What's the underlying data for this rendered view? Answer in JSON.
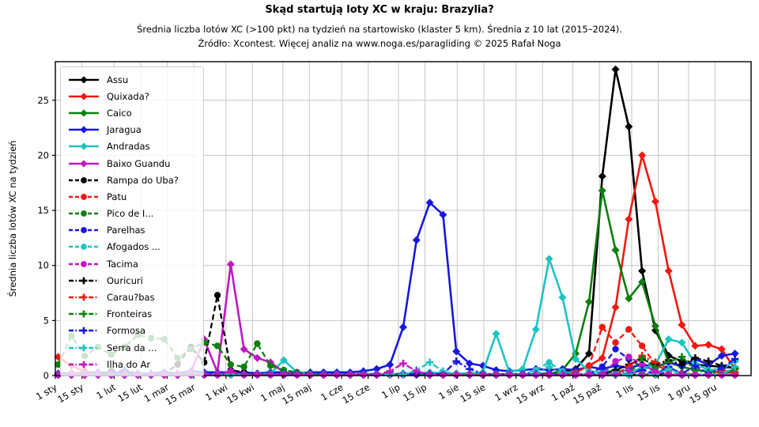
{
  "header": {
    "title": "Skąd startują loty XC w kraju: Brazylia?",
    "subtitle": "Średnia liczba lotów XC (>100 pkt) na tydzień na startowisko (klaster 5 km). Średnia z 10 lat (2015–2024).",
    "source": "Źródło: Xcontest. Więcej analiz na www.noga.es/paragliding © 2025 Rafał Noga"
  },
  "chart_data": {
    "type": "line",
    "title": "Skąd startują loty XC w kraju: Brazylia?",
    "subtitle": "Średnia liczba lotów XC (>100 pkt) na tydzień na startowisko (klaster 5 km). Średnia z 10 lat (2015–2024).",
    "source": "Źródło: Xcontest. Więcej analiz na www.noga.es/paragliding © 2025 Rafał Noga",
    "ylabel": "Średnia liczba lotów XC na tydzień",
    "ylim": [
      0,
      28.5
    ],
    "y_ticks": [
      0,
      5,
      10,
      15,
      20,
      25
    ],
    "grid": true,
    "legend_position": "upper left",
    "x_tick_labels": [
      "1 sty",
      "15 sty",
      "1 lut",
      "15 lut",
      "1 mar",
      "15 mar",
      "1 kwi",
      "15 kwi",
      "1 maj",
      "15 maj",
      "1 cze",
      "15 cze",
      "1 lip",
      "15 lip",
      "1 sie",
      "15 sie",
      "1 wrz",
      "15 wrz",
      "1 paź",
      "15 paź",
      "1 lis",
      "15 lis",
      "1 gru",
      "15 gru"
    ],
    "x_tick_days": [
      0,
      14,
      31,
      45,
      59,
      73,
      90,
      104,
      120,
      134,
      151,
      165,
      181,
      195,
      212,
      226,
      243,
      257,
      273,
      287,
      304,
      318,
      334,
      348
    ],
    "weeks": 52,
    "grid_color": "#c6c6c6",
    "series": [
      {
        "name": "Assu",
        "color": "#000000",
        "line": "solid",
        "marker": "diamond",
        "values": [
          0.1,
          0.1,
          0.1,
          0.1,
          0.1,
          0.1,
          0.1,
          0.1,
          0.1,
          0.1,
          0.1,
          0.1,
          0.1,
          0.1,
          0.1,
          0.1,
          0.1,
          0.1,
          0.1,
          0.1,
          0.1,
          0.1,
          0.1,
          0.1,
          0.1,
          0.1,
          0.1,
          0.1,
          0.1,
          0.1,
          0.1,
          0.1,
          0.1,
          0.1,
          0.1,
          0.1,
          0.1,
          0.2,
          0.3,
          0.6,
          2.0,
          18.1,
          27.8,
          22.6,
          9.5,
          4.1,
          1.8,
          1.3,
          1.0,
          0.9,
          0.8,
          0.7
        ]
      },
      {
        "name": "Quixada?",
        "color": "#ee1a10",
        "line": "solid",
        "marker": "diamond",
        "values": [
          1.7,
          0.9,
          0.4,
          0.2,
          0.1,
          0.1,
          0.1,
          0.1,
          0.1,
          0.1,
          0.1,
          0.1,
          0.1,
          0.1,
          0.1,
          0.1,
          0.1,
          0.1,
          0.1,
          0.1,
          0.1,
          0.1,
          0.1,
          0.1,
          0.1,
          0.1,
          0.1,
          0.1,
          0.1,
          0.1,
          0.1,
          0.1,
          0.1,
          0.1,
          0.1,
          0.1,
          0.1,
          0.1,
          0.2,
          0.3,
          0.9,
          1.6,
          6.2,
          14.2,
          20.0,
          15.8,
          9.5,
          4.6,
          2.7,
          2.8,
          2.4,
          0.6
        ]
      },
      {
        "name": "Caico",
        "color": "#0c7f0c",
        "line": "solid",
        "marker": "diamond",
        "values": [
          0.1,
          0.1,
          0.1,
          0.1,
          0.1,
          0.1,
          0.1,
          0.1,
          0.1,
          0.1,
          0.1,
          0.1,
          0.1,
          0.1,
          0.1,
          0.1,
          0.1,
          0.1,
          0.1,
          0.1,
          0.1,
          0.1,
          0.1,
          0.1,
          0.1,
          0.1,
          0.1,
          0.1,
          0.1,
          0.1,
          0.1,
          0.1,
          0.1,
          0.1,
          0.1,
          0.1,
          0.1,
          0.1,
          0.5,
          2.0,
          6.7,
          16.8,
          11.4,
          7.0,
          8.5,
          4.5,
          1.2,
          0.8,
          0.5,
          0.4,
          0.3,
          0.3
        ]
      },
      {
        "name": "Jaragua",
        "color": "#1717e0",
        "line": "solid",
        "marker": "diamond",
        "values": [
          0.2,
          0.2,
          0.2,
          0.3,
          0.2,
          0.3,
          0.2,
          0.2,
          0.3,
          0.2,
          0.4,
          0.3,
          0.3,
          0.3,
          0.3,
          0.2,
          0.3,
          0.3,
          0.2,
          0.3,
          0.3,
          0.3,
          0.3,
          0.4,
          0.6,
          1.0,
          4.4,
          12.3,
          15.7,
          14.6,
          2.2,
          1.1,
          0.9,
          0.5,
          0.4,
          0.5,
          0.6,
          0.5,
          0.6,
          0.5,
          0.8,
          0.6,
          0.9,
          0.7,
          1.0,
          0.8,
          1.2,
          0.9,
          1.5,
          1.0,
          1.8,
          2.0
        ]
      },
      {
        "name": "Andradas",
        "color": "#1ec3c3",
        "line": "solid",
        "marker": "diamond",
        "values": [
          0.1,
          0.1,
          0.1,
          0.1,
          0.1,
          0.1,
          0.1,
          0.1,
          0.1,
          0.1,
          0.1,
          0.1,
          0.1,
          0.1,
          0.1,
          0.1,
          0.2,
          1.4,
          0.3,
          0.1,
          0.1,
          0.1,
          0.1,
          0.1,
          0.1,
          0.1,
          0.2,
          0.2,
          0.3,
          0.2,
          0.2,
          0.2,
          0.3,
          3.8,
          0.3,
          0.6,
          4.2,
          10.6,
          7.1,
          1.5,
          0.4,
          0.3,
          0.5,
          0.4,
          0.6,
          1.0,
          3.3,
          3.0,
          1.1,
          0.5,
          0.6,
          1.3
        ]
      },
      {
        "name": "Baixo Guandu",
        "color": "#c217c2",
        "line": "solid",
        "marker": "diamond",
        "values": [
          0.05,
          0.05,
          0.05,
          0.05,
          0.05,
          0.05,
          0.05,
          0.05,
          0.05,
          0.05,
          0.3,
          3.3,
          0.3,
          10.1,
          2.4,
          1.6,
          1.2,
          0.3,
          0.1,
          0.05,
          0.05,
          0.05,
          0.05,
          0.05,
          0.05,
          0.05,
          0.05,
          0.05,
          0.05,
          0.05,
          0.05,
          0.05,
          0.05,
          0.05,
          0.05,
          0.05,
          0.05,
          0.05,
          0.05,
          0.05,
          0.05,
          0.05,
          0.05,
          0.05,
          0.05,
          0.05,
          0.05,
          0.05,
          0.05,
          0.05,
          0.05,
          0.05
        ]
      },
      {
        "name": "Rampa do Uba?",
        "color": "#000000",
        "line": "dashed",
        "marker": "circle",
        "values": [
          0.1,
          0.1,
          0.2,
          0.1,
          0.4,
          0.3,
          0.1,
          0.1,
          0.2,
          1.0,
          2.6,
          1.2,
          7.3,
          0.5,
          0.3,
          0.1,
          0.1,
          0.1,
          0.1,
          0.1,
          0.1,
          0.1,
          0.1,
          0.1,
          0.1,
          0.1,
          0.1,
          0.1,
          0.1,
          0.1,
          0.1,
          0.1,
          0.1,
          0.1,
          0.1,
          0.1,
          0.1,
          0.1,
          0.1,
          0.1,
          0.1,
          0.1,
          0.1,
          0.1,
          0.1,
          0.1,
          0.1,
          0.1,
          0.1,
          0.1,
          0.1,
          0.1
        ]
      },
      {
        "name": "Patu",
        "color": "#ee1a10",
        "line": "dashed",
        "marker": "circle",
        "values": [
          0.1,
          0.2,
          0.3,
          0.1,
          0.1,
          0.1,
          0.1,
          0.1,
          0.1,
          0.1,
          0.1,
          0.1,
          0.1,
          0.1,
          0.1,
          0.1,
          0.1,
          0.1,
          0.1,
          0.1,
          0.1,
          0.1,
          0.1,
          0.1,
          0.1,
          0.1,
          0.1,
          0.1,
          0.1,
          0.1,
          0.1,
          0.1,
          0.1,
          0.1,
          0.1,
          0.1,
          0.1,
          0.1,
          0.1,
          0.3,
          0.9,
          4.4,
          3.0,
          4.2,
          2.7,
          1.0,
          0.4,
          0.2,
          0.1,
          0.1,
          0.1,
          0.1
        ]
      },
      {
        "name": "Pico de I...",
        "color": "#0c7f0c",
        "line": "dashed",
        "marker": "circle",
        "values": [
          1.0,
          3.6,
          1.8,
          2.6,
          1.9,
          2.6,
          3.7,
          3.4,
          3.3,
          1.6,
          2.4,
          3.0,
          2.7,
          1.0,
          0.8,
          2.9,
          0.9,
          0.5,
          0.3,
          0.2,
          0.1,
          0.1,
          0.1,
          0.1,
          0.1,
          0.1,
          0.1,
          0.1,
          0.1,
          0.1,
          0.1,
          0.1,
          0.1,
          0.1,
          0.1,
          0.1,
          0.1,
          0.1,
          0.1,
          0.1,
          0.1,
          0.1,
          0.1,
          0.1,
          0.1,
          0.1,
          0.1,
          0.1,
          0.1,
          0.1,
          0.1,
          0.1
        ]
      },
      {
        "name": "Parelhas",
        "color": "#1717e0",
        "line": "dashed",
        "marker": "circle",
        "values": [
          0.1,
          0.1,
          0.1,
          0.1,
          0.1,
          0.1,
          0.1,
          0.1,
          0.1,
          0.1,
          0.1,
          0.1,
          0.1,
          0.1,
          0.1,
          0.1,
          0.1,
          0.1,
          0.1,
          0.1,
          0.1,
          0.1,
          0.1,
          0.1,
          0.1,
          0.1,
          0.1,
          0.1,
          0.1,
          0.1,
          0.1,
          0.1,
          0.1,
          0.1,
          0.1,
          0.1,
          0.1,
          0.1,
          0.1,
          0.1,
          0.1,
          0.8,
          2.4,
          1.5,
          0.8,
          0.4,
          0.1,
          0.1,
          0.1,
          0.1,
          0.1,
          0.1
        ]
      },
      {
        "name": "Afogados ...",
        "color": "#1ec3c3",
        "line": "dashed",
        "marker": "circle",
        "values": [
          0.1,
          0.1,
          0.1,
          0.1,
          0.1,
          0.1,
          0.1,
          0.1,
          0.1,
          0.1,
          0.1,
          0.1,
          0.1,
          0.1,
          0.1,
          0.1,
          0.1,
          0.1,
          0.1,
          0.1,
          0.1,
          0.1,
          0.1,
          0.1,
          0.1,
          0.1,
          0.1,
          0.1,
          0.1,
          0.1,
          0.1,
          0.1,
          0.1,
          0.1,
          0.1,
          0.1,
          0.5,
          1.2,
          0.4,
          0.1,
          0.1,
          0.1,
          0.1,
          0.1,
          0.8,
          0.3,
          0.5,
          0.1,
          0.1,
          0.1,
          0.1,
          0.1
        ]
      },
      {
        "name": "Tacima",
        "color": "#c217c2",
        "line": "dashed",
        "marker": "circle",
        "values": [
          0.08,
          0.08,
          0.08,
          0.08,
          0.08,
          0.08,
          0.08,
          0.08,
          0.08,
          0.08,
          0.08,
          0.08,
          0.08,
          0.4,
          0.08,
          0.08,
          0.08,
          0.08,
          0.08,
          0.08,
          0.08,
          0.08,
          0.08,
          0.08,
          0.08,
          0.08,
          0.08,
          0.08,
          0.08,
          0.08,
          0.08,
          0.08,
          0.08,
          0.08,
          0.08,
          0.08,
          0.08,
          0.08,
          0.08,
          0.08,
          0.08,
          0.08,
          1.3,
          1.7,
          1.0,
          0.4,
          0.08,
          0.08,
          0.08,
          0.08,
          0.08,
          0.08
        ]
      },
      {
        "name": "Ouricuri",
        "color": "#000000",
        "line": "dashdot",
        "marker": "plus",
        "values": [
          0.1,
          0.1,
          0.1,
          0.1,
          0.1,
          0.1,
          0.1,
          0.1,
          0.1,
          0.1,
          0.1,
          0.1,
          0.1,
          0.1,
          0.1,
          0.1,
          0.1,
          0.1,
          0.1,
          0.1,
          0.1,
          0.1,
          0.1,
          0.1,
          0.1,
          0.1,
          0.1,
          0.1,
          0.1,
          0.1,
          0.1,
          0.1,
          0.1,
          0.1,
          0.1,
          0.1,
          0.1,
          0.1,
          0.1,
          0.1,
          0.1,
          0.1,
          0.5,
          1.0,
          1.5,
          1.0,
          1.4,
          1.0,
          1.6,
          1.3,
          0.9,
          0.7
        ]
      },
      {
        "name": "Carau?bas",
        "color": "#ee1a10",
        "line": "dashdot",
        "marker": "plus",
        "values": [
          0.1,
          0.1,
          0.1,
          0.1,
          0.1,
          0.1,
          0.1,
          0.1,
          0.1,
          0.1,
          0.1,
          0.1,
          0.1,
          0.1,
          0.1,
          0.1,
          0.1,
          0.1,
          0.1,
          0.1,
          0.1,
          0.1,
          0.1,
          0.1,
          0.1,
          0.1,
          0.1,
          0.1,
          0.1,
          0.1,
          0.1,
          0.1,
          0.1,
          0.1,
          0.1,
          0.1,
          0.1,
          0.1,
          0.1,
          0.1,
          0.1,
          0.1,
          0.1,
          0.8,
          1.8,
          1.2,
          0.6,
          0.2,
          0.1,
          0.1,
          0.5,
          0.3
        ]
      },
      {
        "name": "Fronteiras",
        "color": "#0c7f0c",
        "line": "dashdot",
        "marker": "plus",
        "values": [
          0.1,
          0.1,
          0.1,
          0.1,
          0.1,
          0.1,
          0.1,
          0.1,
          0.1,
          0.1,
          0.1,
          0.1,
          0.1,
          0.1,
          0.1,
          0.1,
          0.1,
          0.1,
          0.1,
          0.1,
          0.1,
          0.1,
          0.1,
          0.1,
          0.1,
          0.1,
          0.1,
          0.1,
          0.1,
          0.1,
          0.1,
          0.1,
          0.1,
          0.1,
          0.1,
          0.1,
          0.1,
          0.1,
          0.1,
          0.1,
          0.1,
          0.1,
          0.1,
          0.1,
          1.6,
          0.7,
          1.2,
          1.7,
          0.5,
          0.3,
          0.1,
          0.6
        ]
      },
      {
        "name": "Formosa",
        "color": "#1717e0",
        "line": "dashdot",
        "marker": "plus",
        "values": [
          0.15,
          0.15,
          0.2,
          0.15,
          0.2,
          0.5,
          0.2,
          0.15,
          0.15,
          0.15,
          0.15,
          0.15,
          0.15,
          0.15,
          0.15,
          0.15,
          0.15,
          0.15,
          0.15,
          0.15,
          0.15,
          0.15,
          0.15,
          0.15,
          0.15,
          0.15,
          0.15,
          0.15,
          0.15,
          0.15,
          1.3,
          0.6,
          0.15,
          0.15,
          0.15,
          0.15,
          0.15,
          0.15,
          0.15,
          0.15,
          0.15,
          0.15,
          0.15,
          0.15,
          0.5,
          0.15,
          0.8,
          0.15,
          0.9,
          0.15,
          0.7,
          1.5
        ]
      },
      {
        "name": "Serra da ...",
        "color": "#1ec3c3",
        "line": "dashdot",
        "marker": "plus",
        "values": [
          0.1,
          0.1,
          0.1,
          0.1,
          0.1,
          0.1,
          0.1,
          0.1,
          0.1,
          0.1,
          0.1,
          0.1,
          0.1,
          0.1,
          0.1,
          0.1,
          0.1,
          0.1,
          0.1,
          0.1,
          0.1,
          0.1,
          0.1,
          0.1,
          0.1,
          0.1,
          0.1,
          0.5,
          1.2,
          0.4,
          0.1,
          0.1,
          0.1,
          0.1,
          0.1,
          0.1,
          0.1,
          0.8,
          0.1,
          0.1,
          0.1,
          0.1,
          0.1,
          0.1,
          0.1,
          0.1,
          0.6,
          0.1,
          0.1,
          0.1,
          0.1,
          0.8
        ]
      },
      {
        "name": "Ilha do Ar",
        "color": "#c217c2",
        "line": "dashdot",
        "marker": "plus",
        "values": [
          0.08,
          0.08,
          0.08,
          0.08,
          0.08,
          0.08,
          0.08,
          0.08,
          0.08,
          0.08,
          0.08,
          0.08,
          0.08,
          0.3,
          0.08,
          0.08,
          0.08,
          0.08,
          0.08,
          0.08,
          0.08,
          0.08,
          0.08,
          0.08,
          0.08,
          0.4,
          1.1,
          0.4,
          0.08,
          0.08,
          0.08,
          0.08,
          0.08,
          0.08,
          0.08,
          0.08,
          0.08,
          0.08,
          0.08,
          0.08,
          0.08,
          0.08,
          0.08,
          0.5,
          0.08,
          0.3,
          0.08,
          0.08,
          0.08,
          0.08,
          0.08,
          0.08
        ]
      }
    ]
  }
}
